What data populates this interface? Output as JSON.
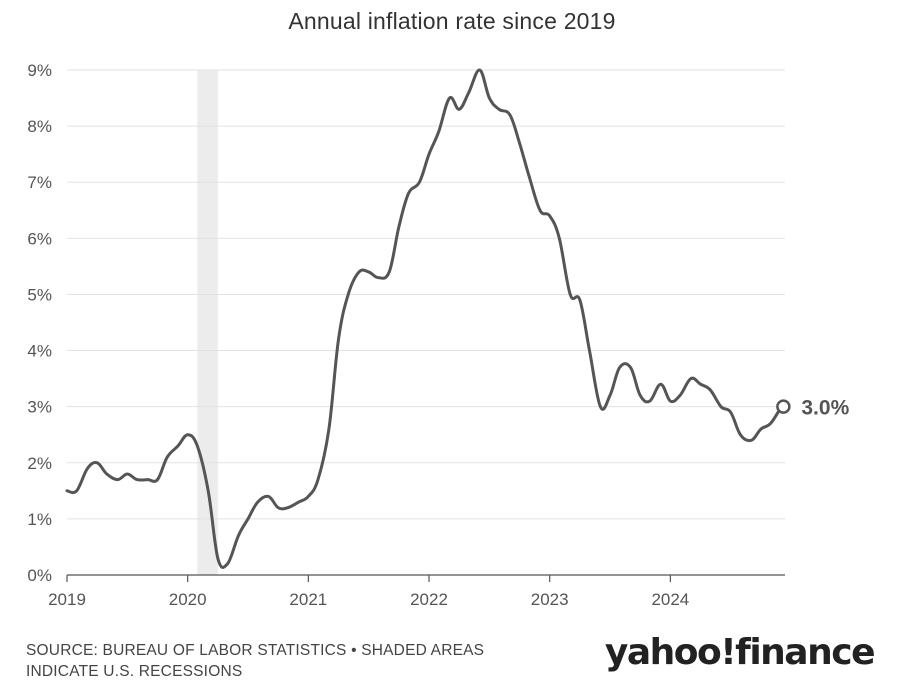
{
  "chart_data": {
    "type": "line",
    "title": "Annual inflation rate since 2019",
    "x_tick_labels": [
      "2019",
      "2020",
      "2021",
      "2022",
      "2023",
      "2024"
    ],
    "y_tick_labels": [
      "0%",
      "1%",
      "2%",
      "3%",
      "4%",
      "5%",
      "6%",
      "7%",
      "8%",
      "9%"
    ],
    "ylim": [
      0,
      9
    ],
    "xlim": [
      2019.0,
      2024.95
    ],
    "grid": true,
    "recession_shading": [
      [
        2020.08,
        2020.25
      ]
    ],
    "end_label": "3.0%",
    "series": [
      {
        "points": [
          [
            2019.0,
            1.5
          ],
          [
            2019.08,
            1.5
          ],
          [
            2019.17,
            1.9
          ],
          [
            2019.25,
            2.0
          ],
          [
            2019.33,
            1.8
          ],
          [
            2019.42,
            1.7
          ],
          [
            2019.5,
            1.8
          ],
          [
            2019.58,
            1.7
          ],
          [
            2019.67,
            1.7
          ],
          [
            2019.75,
            1.7
          ],
          [
            2019.83,
            2.1
          ],
          [
            2019.92,
            2.3
          ],
          [
            2020.0,
            2.5
          ],
          [
            2020.08,
            2.3
          ],
          [
            2020.17,
            1.5
          ],
          [
            2020.25,
            0.3
          ],
          [
            2020.33,
            0.2
          ],
          [
            2020.42,
            0.7
          ],
          [
            2020.5,
            1.0
          ],
          [
            2020.58,
            1.3
          ],
          [
            2020.67,
            1.4
          ],
          [
            2020.75,
            1.2
          ],
          [
            2020.83,
            1.2
          ],
          [
            2020.92,
            1.3
          ],
          [
            2021.0,
            1.4
          ],
          [
            2021.08,
            1.7
          ],
          [
            2021.17,
            2.6
          ],
          [
            2021.25,
            4.2
          ],
          [
            2021.33,
            5.0
          ],
          [
            2021.42,
            5.4
          ],
          [
            2021.5,
            5.4
          ],
          [
            2021.58,
            5.3
          ],
          [
            2021.67,
            5.4
          ],
          [
            2021.75,
            6.2
          ],
          [
            2021.83,
            6.8
          ],
          [
            2021.92,
            7.0
          ],
          [
            2022.0,
            7.5
          ],
          [
            2022.08,
            7.9
          ],
          [
            2022.17,
            8.5
          ],
          [
            2022.25,
            8.3
          ],
          [
            2022.33,
            8.6
          ],
          [
            2022.42,
            9.0
          ],
          [
            2022.5,
            8.5
          ],
          [
            2022.58,
            8.3
          ],
          [
            2022.67,
            8.2
          ],
          [
            2022.75,
            7.7
          ],
          [
            2022.83,
            7.1
          ],
          [
            2022.92,
            6.5
          ],
          [
            2023.0,
            6.4
          ],
          [
            2023.08,
            6.0
          ],
          [
            2023.17,
            5.0
          ],
          [
            2023.25,
            4.9
          ],
          [
            2023.33,
            4.0
          ],
          [
            2023.42,
            3.0
          ],
          [
            2023.5,
            3.2
          ],
          [
            2023.58,
            3.7
          ],
          [
            2023.67,
            3.7
          ],
          [
            2023.75,
            3.2
          ],
          [
            2023.83,
            3.1
          ],
          [
            2023.92,
            3.4
          ],
          [
            2024.0,
            3.1
          ],
          [
            2024.08,
            3.2
          ],
          [
            2024.17,
            3.5
          ],
          [
            2024.25,
            3.4
          ],
          [
            2024.33,
            3.3
          ],
          [
            2024.42,
            3.0
          ],
          [
            2024.5,
            2.9
          ],
          [
            2024.58,
            2.5
          ],
          [
            2024.67,
            2.4
          ],
          [
            2024.75,
            2.6
          ],
          [
            2024.83,
            2.7
          ],
          [
            2024.92,
            3.0
          ]
        ]
      }
    ],
    "colors": {
      "line": "#555555",
      "grid": "#e2e2e2",
      "shade": "#ececec",
      "axis": "#555555",
      "tick_text": "#555555"
    }
  },
  "footer": {
    "source_line1": "SOURCE: BUREAU OF LABOR STATISTICS • SHADED AREAS",
    "source_line2": "INDICATE U.S. RECESSIONS",
    "brand": "yahoo!finance"
  }
}
